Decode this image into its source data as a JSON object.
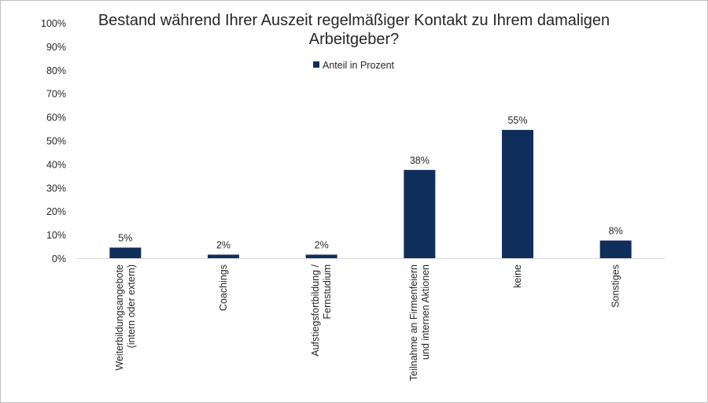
{
  "chart_data": {
    "type": "bar",
    "title": "Bestand während Ihrer Auszeit regelmäßiger Kontakt zu Ihrem damaligen Arbeitgeber?",
    "title_lines": [
      "Bestand während Ihrer Auszeit regelmäßiger Kontakt zu Ihrem damaligen",
      "Arbeitgeber?"
    ],
    "xlabel": "",
    "ylabel": "",
    "ylim": [
      0,
      100
    ],
    "yticks": [
      "0%",
      "10%",
      "20%",
      "30%",
      "40%",
      "50%",
      "60%",
      "70%",
      "80%",
      "90%",
      "100%"
    ],
    "grid": false,
    "legend": {
      "position": "top-center",
      "entries": [
        "Anteil in Prozent"
      ]
    },
    "categories": [
      [
        "Weiterbildungsangebote",
        "(intern oder extern)"
      ],
      [
        "Coachings"
      ],
      [
        "Aufstiegsfortbildung /",
        "Fernstudium"
      ],
      [
        "Teilnahme an Firmenfeiern",
        "und internen Aktionen"
      ],
      [
        "keine"
      ],
      [
        "Sonstiges"
      ]
    ],
    "series": [
      {
        "name": "Anteil in Prozent",
        "color": "#0f2e5c",
        "values": [
          4.5,
          1.5,
          1.5,
          37.5,
          54.5,
          7.5
        ],
        "labels": [
          "5%",
          "2%",
          "2%",
          "38%",
          "55%",
          "8%"
        ]
      }
    ]
  }
}
